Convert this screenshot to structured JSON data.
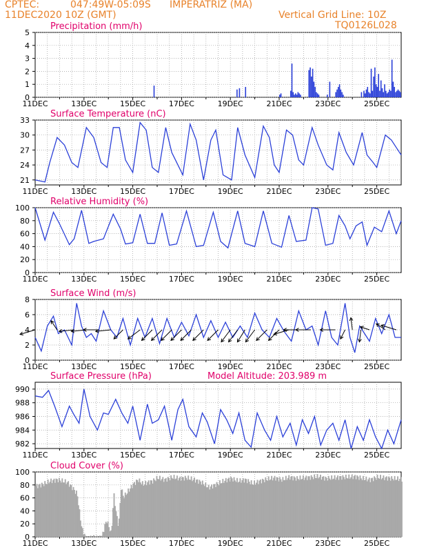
{
  "header": {
    "source": "CPTEC:",
    "coords": "047:49W-05:09S",
    "station": "IMPERATRIZ (MA)",
    "datetime": "11DEC2020 10Z (GMT)",
    "grid_note": "Vertical Grid Line: 10Z",
    "code": "TQ0126L028"
  },
  "colors": {
    "line": "#2a3fd8",
    "bar": "#2a3fd8",
    "cloud": "#a9a9a9",
    "title": "#e0006a",
    "header": "#e8822a"
  },
  "x_ticks": [
    "11DEC",
    "13DEC",
    "15DEC",
    "17DEC",
    "19DEC",
    "21DEC",
    "23DEC",
    "25DEC"
  ],
  "chart_data": [
    {
      "type": "bar",
      "title": "Precipitation (mm/h)",
      "ylim": [
        0,
        5
      ],
      "yticks": [
        "0",
        "1",
        "2",
        "3",
        "4",
        "5"
      ],
      "x": [
        4.85,
        8.25,
        8.35,
        8.6,
        10.0,
        10.05,
        10.45,
        10.5,
        10.55,
        10.6,
        10.65,
        10.7,
        10.75,
        10.8,
        10.85,
        11.2,
        11.25,
        11.3,
        11.35,
        11.4,
        11.45,
        11.5,
        11.55,
        11.6,
        11.95,
        12.05,
        12.3,
        12.35,
        12.4,
        12.45,
        12.5,
        12.55,
        12.6,
        13.35,
        13.45,
        13.5,
        13.55,
        13.6,
        13.65,
        13.7,
        13.75,
        13.8,
        13.85,
        13.9,
        13.95,
        14.0,
        14.05,
        14.1,
        14.15,
        14.2,
        14.25,
        14.3,
        14.35,
        14.4,
        14.45,
        14.5,
        14.55,
        14.6,
        14.65,
        14.7,
        14.75,
        14.8,
        14.85,
        14.9,
        14.95
      ],
      "values": [
        0.9,
        0.6,
        0.7,
        0.8,
        0.2,
        0.3,
        0.5,
        2.6,
        0.4,
        0.2,
        0.3,
        0.2,
        0.4,
        0.3,
        0.2,
        2.1,
        2.3,
        1.6,
        2.2,
        1.2,
        0.8,
        0.4,
        0.3,
        0.2,
        0.2,
        1.2,
        0.4,
        0.6,
        0.8,
        1.0,
        0.6,
        0.4,
        0.2,
        0.4,
        0.5,
        0.3,
        0.6,
        0.8,
        0.4,
        0.3,
        2.2,
        0.5,
        1.6,
        2.3,
        1.0,
        0.8,
        1.8,
        0.5,
        1.3,
        0.7,
        0.4,
        1.0,
        0.5,
        0.3,
        0.4,
        0.6,
        0.5,
        2.9,
        1.2,
        0.8,
        0.4,
        0.5,
        0.6,
        0.5,
        0.4
      ],
      "xlim": [
        0,
        15
      ]
    },
    {
      "type": "line",
      "title": "Surface Temperature (nC)",
      "ylim": [
        20,
        33
      ],
      "yticks": [
        "21",
        "24",
        "27",
        "30",
        "33"
      ],
      "xlim": [
        0,
        15
      ],
      "x": [
        0.0,
        0.4,
        0.6,
        0.9,
        1.2,
        1.5,
        1.75,
        2.1,
        2.4,
        2.7,
        2.95,
        3.2,
        3.45,
        3.7,
        4.0,
        4.3,
        4.55,
        4.8,
        5.05,
        5.35,
        5.6,
        6.05,
        6.35,
        6.6,
        6.9,
        7.2,
        7.4,
        7.7,
        8.05,
        8.3,
        8.6,
        9.0,
        9.35,
        9.6,
        9.8,
        10.0,
        10.3,
        10.55,
        10.8,
        11.0,
        11.35,
        11.6,
        11.95,
        12.2,
        12.45,
        12.75,
        13.05,
        13.4,
        13.6,
        13.85,
        14.0,
        14.35,
        14.6,
        14.8,
        15.0
      ],
      "values": [
        21.0,
        20.6,
        24.5,
        29.5,
        28.0,
        24.5,
        23.5,
        31.5,
        29.5,
        24.5,
        23.5,
        31.5,
        31.5,
        25.0,
        22.5,
        32.5,
        31.0,
        23.5,
        22.5,
        31.5,
        26.5,
        22.0,
        32.2,
        29.0,
        21.0,
        29.0,
        31.0,
        22.0,
        21.0,
        31.5,
        26.0,
        21.5,
        31.8,
        29.5,
        24.0,
        22.5,
        31.0,
        30.0,
        25.0,
        24.0,
        31.5,
        28.0,
        24.0,
        23.0,
        30.5,
        26.5,
        24.0,
        30.5,
        26.0,
        24.5,
        23.5,
        30.0,
        29.0,
        27.5,
        26.0
      ]
    },
    {
      "type": "line",
      "title": "Relative Humidity (%)",
      "ylim": [
        0,
        100
      ],
      "yticks": [
        "0",
        "20",
        "40",
        "60",
        "80",
        "100"
      ],
      "xlim": [
        0,
        15
      ],
      "x": [
        0.0,
        0.4,
        0.75,
        1.0,
        1.4,
        1.6,
        1.9,
        2.2,
        2.4,
        2.8,
        3.2,
        3.5,
        3.7,
        4.0,
        4.3,
        4.6,
        4.9,
        5.2,
        5.5,
        5.8,
        6.2,
        6.6,
        6.9,
        7.3,
        7.6,
        7.9,
        8.3,
        8.6,
        9.0,
        9.35,
        9.7,
        10.1,
        10.4,
        10.7,
        11.1,
        11.35,
        11.6,
        11.9,
        12.2,
        12.45,
        12.7,
        12.9,
        13.15,
        13.4,
        13.6,
        13.9,
        14.2,
        14.5,
        14.8,
        15.0
      ],
      "values": [
        100,
        50,
        93,
        75,
        43,
        52,
        96,
        45,
        48,
        52,
        90,
        67,
        44,
        46,
        90,
        45,
        45,
        92,
        42,
        44,
        95,
        40,
        42,
        93,
        48,
        38,
        95,
        45,
        40,
        95,
        45,
        39,
        88,
        48,
        50,
        100,
        98,
        42,
        45,
        88,
        72,
        52,
        72,
        78,
        42,
        70,
        63,
        95,
        60,
        80
      ]
    },
    {
      "type": "line",
      "title": "Surface Wind (m/s)",
      "ylim": [
        0,
        8
      ],
      "yticks": [
        "0",
        "2",
        "4",
        "6",
        "8"
      ],
      "xlim": [
        0,
        15
      ],
      "x": [
        0.0,
        0.25,
        0.5,
        0.75,
        0.95,
        1.2,
        1.5,
        1.7,
        1.9,
        2.1,
        2.3,
        2.5,
        2.8,
        3.1,
        3.35,
        3.6,
        3.9,
        4.2,
        4.5,
        4.8,
        5.1,
        5.4,
        5.7,
        6.0,
        6.3,
        6.6,
        6.9,
        7.2,
        7.5,
        7.8,
        8.1,
        8.4,
        8.7,
        9.0,
        9.3,
        9.6,
        9.9,
        10.2,
        10.5,
        10.8,
        11.1,
        11.35,
        11.6,
        11.9,
        12.15,
        12.4,
        12.7,
        12.9,
        13.1,
        13.3,
        13.5,
        13.7,
        13.95,
        14.2,
        14.5,
        14.75,
        15.0
      ],
      "values": [
        3.0,
        1.2,
        4.5,
        5.8,
        3.5,
        4.0,
        2.0,
        7.5,
        4.5,
        3.0,
        3.5,
        2.5,
        6.5,
        4.0,
        3.0,
        5.5,
        2.0,
        5.5,
        3.0,
        5.5,
        2.2,
        5.5,
        3.0,
        5.0,
        3.2,
        6.0,
        3.0,
        5.2,
        3.0,
        5.0,
        3.0,
        4.5,
        3.0,
        6.2,
        4.0,
        3.0,
        5.5,
        3.8,
        2.5,
        6.5,
        4.0,
        4.5,
        2.0,
        6.5,
        3.0,
        2.0,
        7.5,
        3.0,
        1.0,
        4.5,
        3.5,
        2.5,
        5.5,
        3.5,
        6.0,
        3.0,
        3.0
      ],
      "arrows_x": [
        0.0,
        0.9,
        1.6,
        2.1,
        2.6,
        3.1,
        3.6,
        4.3,
        4.8,
        5.2,
        5.6,
        6.0,
        6.4,
        6.9,
        7.5,
        8.0,
        8.3,
        8.6,
        9.0,
        9.5,
        10.0,
        10.4,
        10.8,
        11.3,
        12.3,
        12.7,
        13.0,
        13.35,
        13.7,
        14.35,
        14.8
      ],
      "arrows_u": [
        -1,
        -0.4,
        -1,
        -1,
        -1,
        -1,
        -0.6,
        -0.8,
        -0.7,
        -0.7,
        -0.7,
        -0.7,
        -0.7,
        -0.7,
        -0.7,
        -0.6,
        -0.6,
        -0.5,
        -0.6,
        -0.7,
        -0.7,
        -1,
        -1,
        -1,
        -1,
        -0.3,
        -0.1,
        -0.1,
        -0.6,
        -0.6,
        -1
      ],
      "arrows_v": [
        -0.3,
        0.6,
        -0.1,
        -0.1,
        0.0,
        -0.1,
        -0.6,
        -0.6,
        -0.7,
        -0.7,
        -0.7,
        -0.7,
        -0.7,
        -0.7,
        -0.7,
        -0.8,
        -0.8,
        -0.8,
        -0.8,
        -0.7,
        -0.7,
        -0.3,
        0.0,
        0.0,
        0.0,
        -0.6,
        0.8,
        -0.8,
        0.2,
        0.4,
        0.3
      ]
    },
    {
      "type": "line",
      "title": "Surface Pressure (hPa)",
      "subtitle": "Model Altitude: 203.989  m",
      "ylim": [
        981.3,
        991
      ],
      "yticks": [
        "982",
        "984",
        "986",
        "988",
        "990"
      ],
      "xlim": [
        0,
        15
      ],
      "x": [
        0.0,
        0.3,
        0.55,
        0.8,
        1.1,
        1.4,
        1.6,
        1.8,
        2.0,
        2.25,
        2.55,
        2.8,
        3.0,
        3.3,
        3.55,
        3.8,
        4.0,
        4.3,
        4.6,
        4.8,
        5.05,
        5.3,
        5.6,
        5.85,
        6.05,
        6.3,
        6.6,
        6.85,
        7.05,
        7.35,
        7.6,
        7.85,
        8.1,
        8.35,
        8.6,
        8.85,
        9.1,
        9.4,
        9.65,
        9.9,
        10.15,
        10.45,
        10.7,
        10.95,
        11.2,
        11.45,
        11.7,
        11.95,
        12.2,
        12.45,
        12.7,
        12.95,
        13.2,
        13.45,
        13.7,
        13.95,
        14.2,
        14.45,
        14.7,
        15.0
      ],
      "values": [
        989.0,
        988.8,
        989.8,
        987.5,
        984.5,
        987.5,
        986.2,
        985.0,
        990.0,
        986.0,
        984.0,
        986.5,
        986.3,
        988.5,
        986.5,
        985.0,
        987.5,
        982.5,
        987.8,
        985.0,
        985.5,
        987.5,
        982.5,
        987.0,
        988.5,
        984.5,
        983.0,
        986.5,
        985.2,
        982.0,
        987.0,
        985.5,
        983.5,
        986.5,
        982.5,
        981.5,
        986.5,
        984.0,
        982.5,
        986.0,
        983.0,
        985.0,
        981.8,
        985.5,
        983.5,
        986.0,
        981.8,
        984.0,
        985.0,
        982.5,
        985.5,
        981.3,
        984.5,
        982.5,
        985.5,
        983.0,
        981.3,
        984.0,
        982.0,
        985.5
      ]
    },
    {
      "type": "bar",
      "title": "Cloud Cover (%)",
      "ylim": [
        0,
        100
      ],
      "yticks": [
        "0",
        "20",
        "40",
        "60",
        "80",
        "100"
      ],
      "xlim": [
        0,
        15
      ],
      "profile_x": [
        0.0,
        0.3,
        0.6,
        0.9,
        1.3,
        1.5,
        1.7,
        1.8,
        1.9,
        2.0,
        2.05,
        2.1,
        2.3,
        2.5,
        2.7,
        2.9,
        3.0,
        3.1,
        3.2,
        3.3,
        3.4,
        3.5,
        3.6,
        3.8,
        4.0,
        4.2,
        4.4,
        4.6,
        4.8,
        5.0,
        5.3,
        5.6,
        5.9,
        6.2,
        6.5,
        6.8,
        7.1,
        7.4,
        7.7,
        8.0,
        8.3,
        8.6,
        8.9,
        9.2,
        9.5,
        9.8,
        10.1,
        10.4,
        10.7,
        11.0,
        11.3,
        11.6,
        11.9,
        12.2,
        12.5,
        12.8,
        13.1,
        13.4,
        13.7,
        14.0,
        14.3,
        14.6,
        15.0
      ],
      "profile_values": [
        82,
        85,
        90,
        92,
        88,
        80,
        70,
        40,
        15,
        8,
        2,
        1,
        3,
        2,
        3,
        30,
        20,
        8,
        70,
        40,
        20,
        80,
        65,
        75,
        85,
        92,
        85,
        88,
        90,
        95,
        92,
        96,
        94,
        95,
        92,
        88,
        80,
        85,
        90,
        94,
        90,
        92,
        86,
        90,
        93,
        95,
        92,
        96,
        94,
        95,
        96,
        97,
        94,
        95,
        96,
        96,
        97,
        94,
        92,
        96,
        95,
        94,
        93
      ]
    }
  ]
}
